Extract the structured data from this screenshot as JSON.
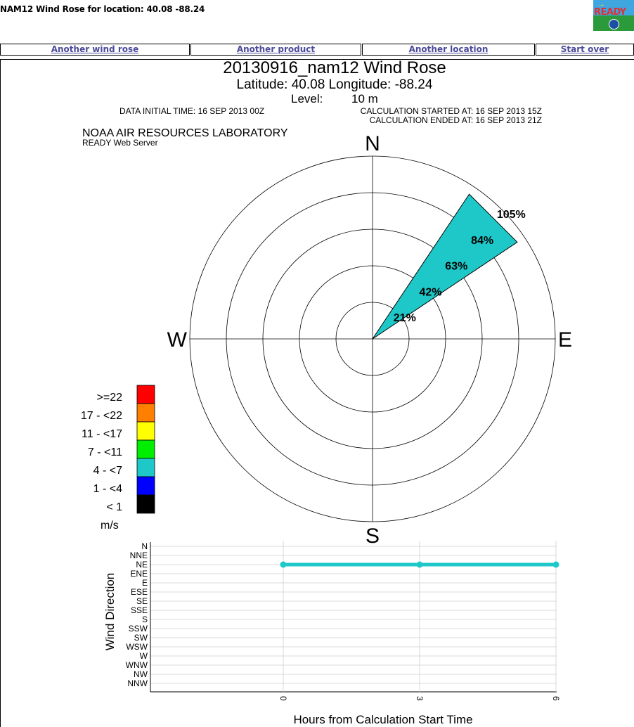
{
  "page": {
    "title": "NAM12 Wind Rose for location: 40.08 -88.24"
  },
  "logo": {
    "text": "READY"
  },
  "nav": [
    {
      "label": "Another wind rose"
    },
    {
      "label": "Another product"
    },
    {
      "label": "Another location"
    },
    {
      "label": "Start over"
    }
  ],
  "chart_data": [
    {
      "type": "wind-rose",
      "title": "20130916_nam12 Wind Rose",
      "subtitle": "Latitude: 40.08 Longitude: -88.24",
      "level_label": "Level:",
      "level_value": "10 m",
      "data_initial_time": "DATA INITIAL TIME: 16 SEP 2013 00Z",
      "calc_started": "CALCULATION STARTED AT: 16 SEP 2013 15Z",
      "calc_ended": "CALCULATION ENDED AT: 16 SEP 2013 21Z",
      "org": "NOAA AIR RESOURCES LABORATORY",
      "server": "READY Web Server",
      "compass": {
        "n": "N",
        "e": "E",
        "s": "S",
        "w": "W"
      },
      "ring_labels": [
        "21%",
        "42%",
        "63%",
        "84%",
        "105%"
      ],
      "ring_max_percent": 105,
      "petals": [
        {
          "direction": "NE",
          "direction_deg": 45,
          "speed_class": "4 - <7",
          "percent": 100,
          "color": "#1fc8c8"
        }
      ],
      "legend": {
        "unit": "m/s",
        "items": [
          {
            "label": ">=22",
            "color": "#ff0000"
          },
          {
            "label": "17 - <22",
            "color": "#ff8000"
          },
          {
            "label": "11 - <17",
            "color": "#ffff00"
          },
          {
            "label": "7 - <11",
            "color": "#00ee00"
          },
          {
            "label": "4 - <7",
            "color": "#1fc8c8"
          },
          {
            "label": "1 - <4",
            "color": "#0000ff"
          },
          {
            "label": "< 1",
            "color": "#000000"
          }
        ]
      }
    },
    {
      "type": "line",
      "ylabel": "Wind Direction",
      "xlabel": "Hours from Calculation Start Time",
      "y_categories": [
        "N",
        "NNE",
        "NE",
        "ENE",
        "E",
        "ESE",
        "SE",
        "SSE",
        "S",
        "SSW",
        "SW",
        "WSW",
        "W",
        "WNW",
        "NW",
        "NNW"
      ],
      "x_ticks": [
        "0",
        "3",
        "6"
      ],
      "series": [
        {
          "color": "#1fc8c8",
          "points": [
            {
              "x": 0,
              "y": "NE"
            },
            {
              "x": 3,
              "y": "NE"
            },
            {
              "x": 6,
              "y": "NE"
            }
          ]
        }
      ]
    }
  ]
}
